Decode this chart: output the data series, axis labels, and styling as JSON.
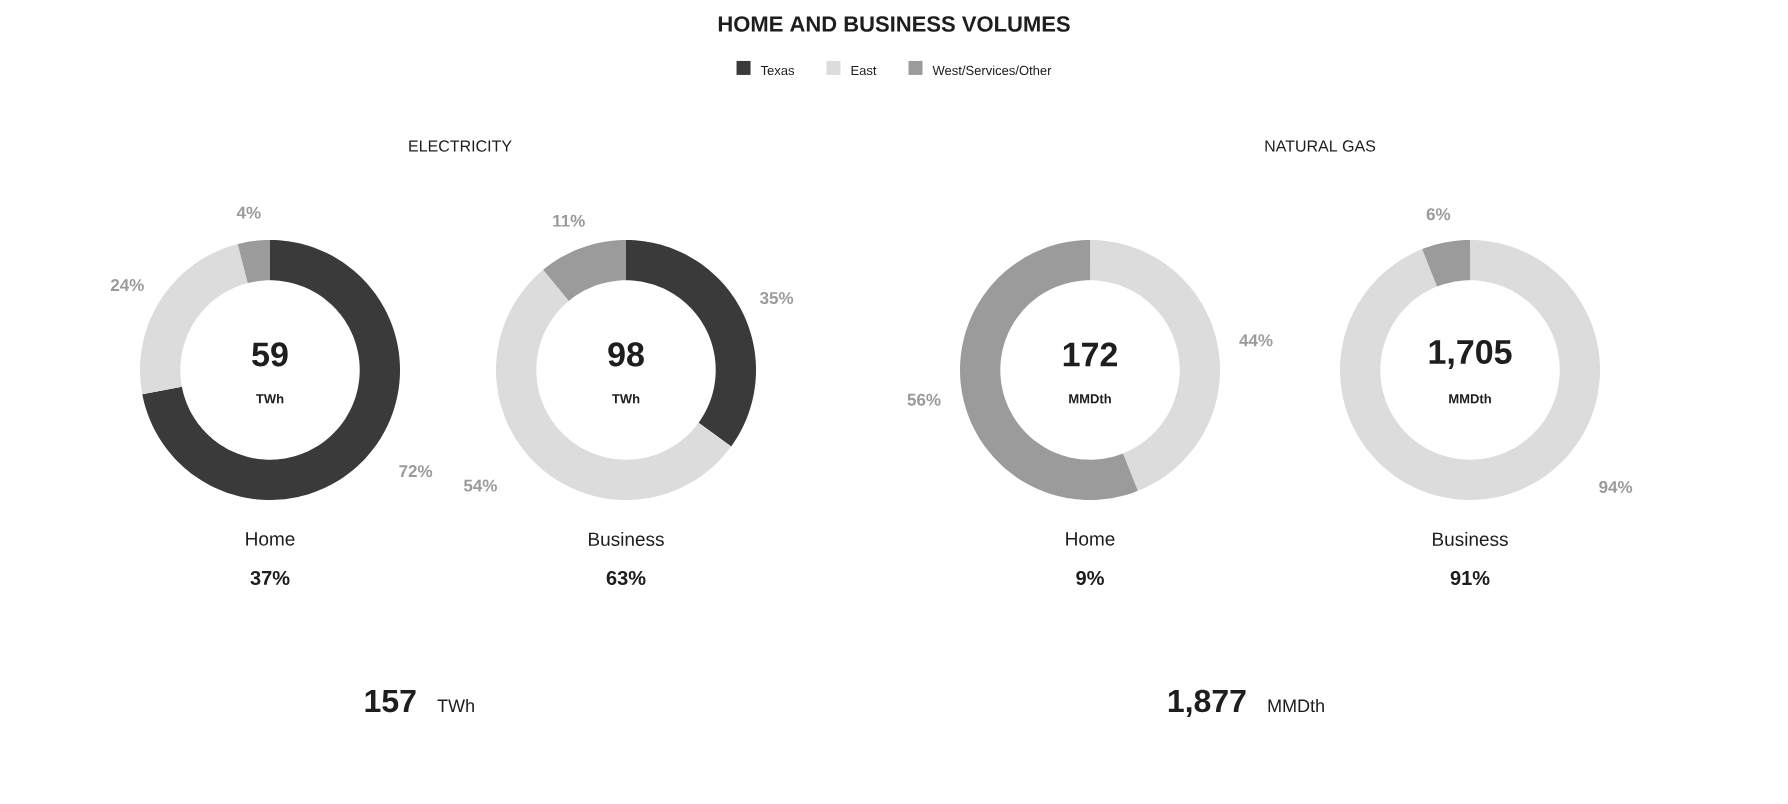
{
  "chart_data": [
    {
      "type": "other",
      "title": "HOME AND BUSINESS VOLUMES",
      "annotations": [
        "ELECTRICITY",
        "NATURAL GAS",
        "157",
        "TWh",
        "1,877",
        "MMDth"
      ]
    },
    {
      "type": "donut",
      "categories": [
        "Texas",
        "East",
        "West/Services/Other"
      ],
      "values": [
        72,
        24,
        4
      ],
      "colors": [
        "#3a3a3a",
        "#dcdcdc",
        "#9b9b9b"
      ],
      "value_labels": [
        "72%",
        "24%",
        "4%"
      ],
      "xlabel": "Home",
      "annotations": [
        "59",
        "TWh",
        "37%"
      ],
      "legend": "top"
    },
    {
      "type": "donut",
      "categories": [
        null,
        null,
        null
      ],
      "values": [
        35,
        54,
        11
      ],
      "colors": [
        "#3a3a3a",
        "#dcdcdc",
        "#9b9b9b"
      ],
      "value_labels": [
        "35%",
        "54%",
        "11%"
      ],
      "xlabel": "Business",
      "annotations": [
        "98",
        "TWh",
        "63%"
      ]
    },
    {
      "type": "donut",
      "categories": [
        null,
        null,
        null
      ],
      "values": [
        null,
        44,
        56
      ],
      "colors": [
        "#3a3a3a",
        "#dcdcdc",
        "#9b9b9b"
      ],
      "value_labels": [
        null,
        "44%",
        "56%"
      ],
      "xlabel": "Home",
      "annotations": [
        "172",
        "MMDth",
        "9%"
      ]
    },
    {
      "type": "donut",
      "categories": [
        null,
        null,
        null
      ],
      "values": [
        null,
        94,
        6
      ],
      "colors": [
        "#3a3a3a",
        "#dcdcdc",
        "#9b9b9b"
      ],
      "value_labels": [
        null,
        "94%",
        "6%"
      ],
      "xlabel": "Business",
      "annotations": [
        "1,705",
        "MMDth",
        "91%"
      ]
    }
  ]
}
